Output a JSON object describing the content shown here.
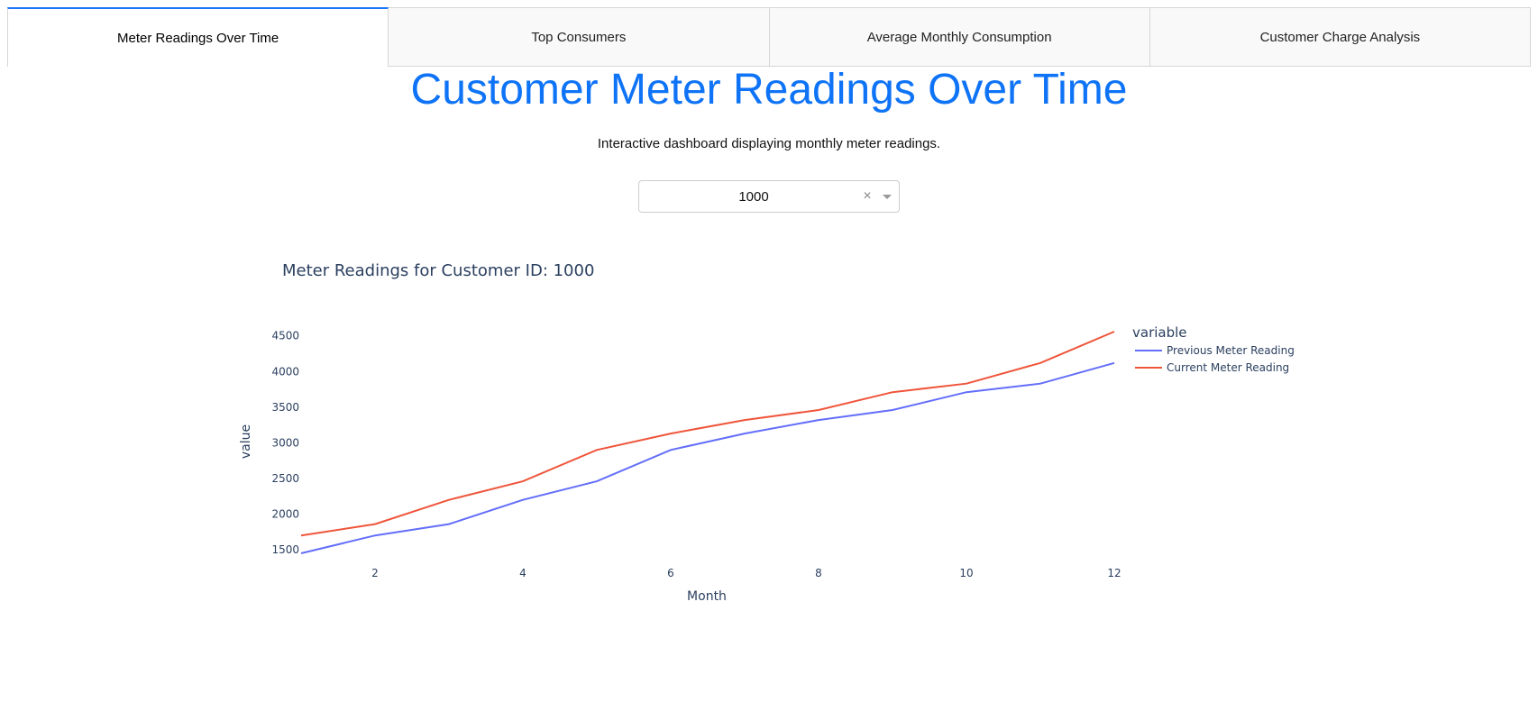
{
  "tabs": [
    {
      "label": "Meter Readings Over Time",
      "active": true
    },
    {
      "label": "Top Consumers",
      "active": false
    },
    {
      "label": "Average Monthly Consumption",
      "active": false
    },
    {
      "label": "Customer Charge Analysis",
      "active": false
    }
  ],
  "header": {
    "title": "Customer Meter Readings Over Time",
    "subtitle": "Interactive dashboard displaying monthly meter readings."
  },
  "customer_select": {
    "value": "1000",
    "clear_symbol": "×"
  },
  "colors": {
    "accent": "#0e73f6",
    "series_previous": "#636efa",
    "series_current": "#ef553b"
  },
  "chart_data": {
    "type": "line",
    "title": "Meter Readings for Customer ID: 1000",
    "xlabel": "Month",
    "ylabel": "value",
    "legend_title": "variable",
    "legend_position": "top-right",
    "x": [
      1,
      2,
      3,
      4,
      5,
      6,
      7,
      8,
      9,
      10,
      11,
      12
    ],
    "xlim": [
      1,
      12
    ],
    "ylim": [
      1450,
      4560
    ],
    "x_ticks": [
      2,
      4,
      6,
      8,
      10,
      12
    ],
    "y_ticks": [
      1500,
      2000,
      2500,
      3000,
      3500,
      4000,
      4500
    ],
    "series": [
      {
        "name": "Previous Meter Reading",
        "color": "#636efa",
        "values": [
          1450,
          1700,
          1860,
          2200,
          2460,
          2900,
          3130,
          3320,
          3460,
          3710,
          3830,
          4120
        ]
      },
      {
        "name": "Current Meter Reading",
        "color": "#ef553b",
        "values": [
          1700,
          1860,
          2200,
          2460,
          2900,
          3130,
          3320,
          3460,
          3710,
          3830,
          4120,
          4560
        ]
      }
    ]
  }
}
